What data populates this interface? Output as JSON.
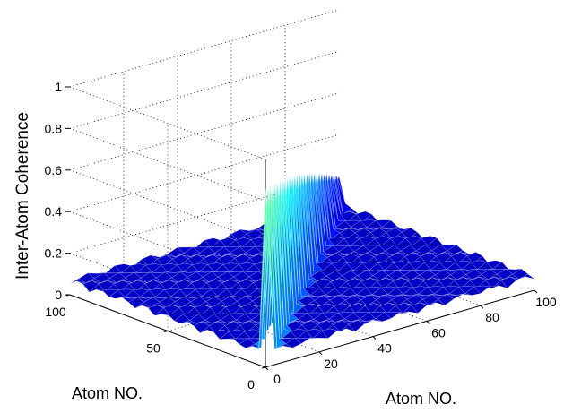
{
  "chart_data": {
    "type": "surface3d",
    "xlabel": "Atom NO.",
    "ylabel": "Atom NO.",
    "zlabel": "Inter-Atom Coherence",
    "x_ticks": [
      "0",
      "20",
      "40",
      "60",
      "80",
      "100"
    ],
    "y_ticks": [
      "0",
      "50",
      "100"
    ],
    "z_ticks": [
      "0",
      "0.2",
      "0.4",
      "0.6",
      "0.8",
      "1"
    ],
    "xlim": [
      0,
      100
    ],
    "ylim": [
      0,
      100
    ],
    "zlim": [
      0,
      1
    ],
    "grid": true,
    "colormap": "jet",
    "description_values": {
      "diagonal_peak": 1,
      "background_ripple": 0.08
    }
  }
}
